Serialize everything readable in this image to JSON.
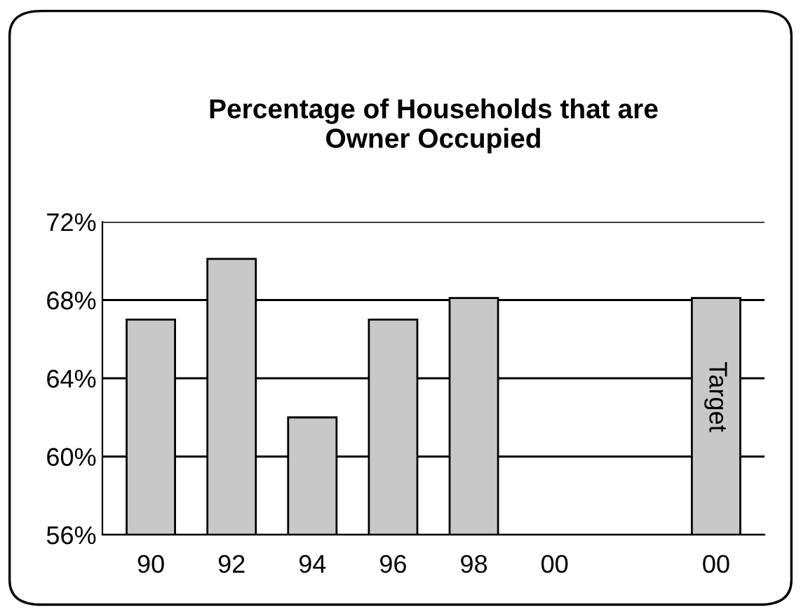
{
  "chart_data": {
    "type": "bar",
    "title": "Percentage of Households that are\nOwner Occupied",
    "categories": [
      "90",
      "92",
      "94",
      "96",
      "98",
      "00",
      null,
      "00"
    ],
    "values": [
      67,
      70.1,
      62,
      67,
      68.1,
      null,
      null,
      68.1
    ],
    "color": "#c8c8c8",
    "ylim": [
      56,
      72
    ],
    "yticks": [
      {
        "value": 56,
        "label": "56%"
      },
      {
        "value": 60,
        "label": "60%"
      },
      {
        "value": 64,
        "label": "64%"
      },
      {
        "value": 68,
        "label": "68%"
      },
      {
        "value": 72,
        "label": "72%"
      }
    ],
    "grid": "y",
    "annotations": [
      "Target"
    ]
  }
}
